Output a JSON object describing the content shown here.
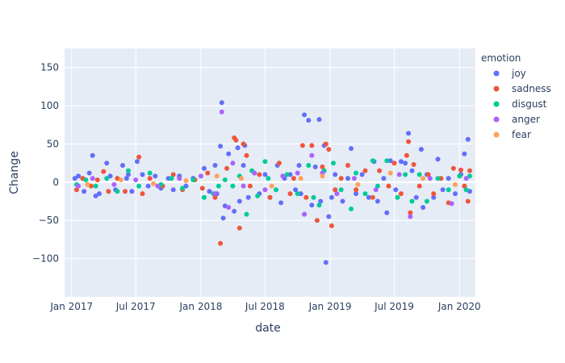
{
  "chart_data": {
    "type": "scatter",
    "title": "",
    "xlabel": "date",
    "ylabel": "Change",
    "xlim": [
      "2016-12-12",
      "2020-02-15"
    ],
    "ylim": [
      -150,
      175
    ],
    "x_ticks": [
      {
        "date": "2017-01-01",
        "label": "Jan 2017"
      },
      {
        "date": "2017-07-01",
        "label": "Jul 2017"
      },
      {
        "date": "2018-01-01",
        "label": "Jan 2018"
      },
      {
        "date": "2018-07-01",
        "label": "Jul 2018"
      },
      {
        "date": "2019-01-01",
        "label": "Jan 2019"
      },
      {
        "date": "2019-07-01",
        "label": "Jul 2019"
      },
      {
        "date": "2020-01-01",
        "label": "Jan 2020"
      }
    ],
    "y_ticks": [
      {
        "value": -100,
        "label": "−100"
      },
      {
        "value": -50,
        "label": "−50"
      },
      {
        "value": 0,
        "label": "0"
      },
      {
        "value": 50,
        "label": "50"
      },
      {
        "value": 100,
        "label": "100"
      },
      {
        "value": 150,
        "label": "150"
      }
    ],
    "grid": true,
    "background": "#E5ECF6",
    "legend": {
      "title": "emotion",
      "position": "right"
    },
    "series": [
      {
        "name": "joy",
        "color": "#636EFA",
        "points": [
          [
            "2017-01-10",
            5
          ],
          [
            "2017-01-20",
            8
          ],
          [
            "2017-02-05",
            -12
          ],
          [
            "2017-02-20",
            12
          ],
          [
            "2017-03-01",
            35
          ],
          [
            "2017-03-10",
            -18
          ],
          [
            "2017-03-20",
            -15
          ],
          [
            "2017-04-10",
            25
          ],
          [
            "2017-04-20",
            8
          ],
          [
            "2017-05-05",
            -10
          ],
          [
            "2017-05-25",
            22
          ],
          [
            "2017-06-05",
            5
          ],
          [
            "2017-06-10",
            10
          ],
          [
            "2017-06-20",
            -12
          ],
          [
            "2017-07-05",
            27
          ],
          [
            "2017-07-20",
            10
          ],
          [
            "2017-08-05",
            -5
          ],
          [
            "2017-08-25",
            8
          ],
          [
            "2017-09-10",
            -8
          ],
          [
            "2017-10-01",
            5
          ],
          [
            "2017-10-15",
            -10
          ],
          [
            "2017-11-01",
            8
          ],
          [
            "2017-11-20",
            -5
          ],
          [
            "2017-12-10",
            5
          ],
          [
            "2018-01-10",
            18
          ],
          [
            "2018-01-25",
            -12
          ],
          [
            "2018-02-10",
            22
          ],
          [
            "2018-02-15",
            -15
          ],
          [
            "2018-02-25",
            47
          ],
          [
            "2018-03-01",
            104
          ],
          [
            "2018-03-05",
            -47
          ],
          [
            "2018-03-10",
            -31
          ],
          [
            "2018-03-20",
            37
          ],
          [
            "2018-04-05",
            -38
          ],
          [
            "2018-04-15",
            45
          ],
          [
            "2018-04-20",
            -25
          ],
          [
            "2018-05-01",
            22
          ],
          [
            "2018-05-05",
            48
          ],
          [
            "2018-05-15",
            -20
          ],
          [
            "2018-06-01",
            12
          ],
          [
            "2018-06-15",
            -15
          ],
          [
            "2018-07-01",
            10
          ],
          [
            "2018-07-15",
            -20
          ],
          [
            "2018-08-05",
            22
          ],
          [
            "2018-08-15",
            -27
          ],
          [
            "2018-08-25",
            5
          ],
          [
            "2018-09-10",
            10
          ],
          [
            "2018-09-25",
            -10
          ],
          [
            "2018-10-05",
            22
          ],
          [
            "2018-10-10",
            -15
          ],
          [
            "2018-10-20",
            88
          ],
          [
            "2018-11-01",
            81
          ],
          [
            "2018-11-10",
            -30
          ],
          [
            "2018-11-20",
            20
          ],
          [
            "2018-12-01",
            82
          ],
          [
            "2018-12-05",
            -25
          ],
          [
            "2018-12-15",
            48
          ],
          [
            "2018-12-20",
            -105
          ],
          [
            "2018-12-28",
            -45
          ],
          [
            "2019-01-05",
            -20
          ],
          [
            "2019-01-15",
            10
          ],
          [
            "2019-02-05",
            -25
          ],
          [
            "2019-02-20",
            5
          ],
          [
            "2019-03-01",
            44
          ],
          [
            "2019-03-15",
            -15
          ],
          [
            "2019-04-01",
            10
          ],
          [
            "2019-04-20",
            -20
          ],
          [
            "2019-05-05",
            27
          ],
          [
            "2019-05-15",
            -25
          ],
          [
            "2019-06-01",
            5
          ],
          [
            "2019-06-10",
            -40
          ],
          [
            "2019-06-20",
            28
          ],
          [
            "2019-07-05",
            -10
          ],
          [
            "2019-07-20",
            27
          ],
          [
            "2019-08-01",
            25
          ],
          [
            "2019-08-10",
            64
          ],
          [
            "2019-08-20",
            15
          ],
          [
            "2019-09-01",
            -20
          ],
          [
            "2019-09-15",
            43
          ],
          [
            "2019-09-20",
            -33
          ],
          [
            "2019-10-01",
            10
          ],
          [
            "2019-10-20",
            -20
          ],
          [
            "2019-11-01",
            30
          ],
          [
            "2019-11-15",
            -10
          ],
          [
            "2019-12-01",
            5
          ],
          [
            "2019-12-20",
            -15
          ],
          [
            "2020-01-05",
            10
          ],
          [
            "2020-01-15",
            37
          ],
          [
            "2020-01-25",
            56
          ],
          [
            "2020-01-30",
            -12
          ]
        ]
      },
      {
        "name": "sadness",
        "color": "#EF553B",
        "points": [
          [
            "2017-01-15",
            -10
          ],
          [
            "2017-02-01",
            5
          ],
          [
            "2017-02-25",
            -5
          ],
          [
            "2017-03-15",
            3
          ],
          [
            "2017-04-01",
            14
          ],
          [
            "2017-04-15",
            -12
          ],
          [
            "2017-05-10",
            5
          ],
          [
            "2017-06-01",
            -12
          ],
          [
            "2017-07-10",
            33
          ],
          [
            "2017-07-20",
            -15
          ],
          [
            "2017-08-10",
            5
          ],
          [
            "2017-09-15",
            -5
          ],
          [
            "2017-10-15",
            10
          ],
          [
            "2017-11-10",
            -10
          ],
          [
            "2017-12-15",
            3
          ],
          [
            "2018-01-05",
            -8
          ],
          [
            "2018-01-20",
            12
          ],
          [
            "2018-02-10",
            -20
          ],
          [
            "2018-02-25",
            -80
          ],
          [
            "2018-03-15",
            18
          ],
          [
            "2018-04-05",
            58
          ],
          [
            "2018-04-10",
            55
          ],
          [
            "2018-04-20",
            -60
          ],
          [
            "2018-05-01",
            50
          ],
          [
            "2018-05-10",
            35
          ],
          [
            "2018-05-20",
            -5
          ],
          [
            "2018-06-15",
            10
          ],
          [
            "2018-07-15",
            -20
          ],
          [
            "2018-08-10",
            25
          ],
          [
            "2018-09-10",
            -15
          ],
          [
            "2018-09-20",
            5
          ],
          [
            "2018-10-15",
            48
          ],
          [
            "2018-10-25",
            -20
          ],
          [
            "2018-11-10",
            48
          ],
          [
            "2018-11-25",
            -50
          ],
          [
            "2018-12-10",
            20
          ],
          [
            "2018-12-20",
            50
          ],
          [
            "2018-12-28",
            43
          ],
          [
            "2019-01-05",
            -57
          ],
          [
            "2019-01-15",
            -10
          ],
          [
            "2019-02-01",
            5
          ],
          [
            "2019-02-20",
            22
          ],
          [
            "2019-03-15",
            -10
          ],
          [
            "2019-04-10",
            15
          ],
          [
            "2019-05-01",
            -20
          ],
          [
            "2019-05-20",
            15
          ],
          [
            "2019-06-15",
            -5
          ],
          [
            "2019-07-01",
            25
          ],
          [
            "2019-07-20",
            -15
          ],
          [
            "2019-08-05",
            35
          ],
          [
            "2019-08-10",
            53
          ],
          [
            "2019-08-15",
            -40
          ],
          [
            "2019-08-25",
            23
          ],
          [
            "2019-09-10",
            -5
          ],
          [
            "2019-10-05",
            10
          ],
          [
            "2019-10-20",
            -15
          ],
          [
            "2019-11-10",
            5
          ],
          [
            "2019-12-01",
            -27
          ],
          [
            "2019-12-15",
            18
          ],
          [
            "2020-01-05",
            16
          ],
          [
            "2020-01-15",
            -5
          ],
          [
            "2020-01-25",
            -25
          ],
          [
            "2020-01-30",
            15
          ]
        ]
      },
      {
        "name": "disgust",
        "color": "#00CC96",
        "points": [
          [
            "2017-01-15",
            -3
          ],
          [
            "2017-02-10",
            3
          ],
          [
            "2017-03-10",
            -5
          ],
          [
            "2017-04-10",
            5
          ],
          [
            "2017-05-10",
            -12
          ],
          [
            "2017-06-10",
            15
          ],
          [
            "2017-07-10",
            -5
          ],
          [
            "2017-08-10",
            12
          ],
          [
            "2017-09-10",
            -3
          ],
          [
            "2017-10-10",
            5
          ],
          [
            "2017-11-10",
            -8
          ],
          [
            "2017-12-10",
            3
          ],
          [
            "2018-01-10",
            -20
          ],
          [
            "2018-02-05",
            -15
          ],
          [
            "2018-02-20",
            -5
          ],
          [
            "2018-03-10",
            3
          ],
          [
            "2018-04-01",
            -5
          ],
          [
            "2018-04-20",
            8
          ],
          [
            "2018-05-10",
            -42
          ],
          [
            "2018-05-25",
            15
          ],
          [
            "2018-06-10",
            -18
          ],
          [
            "2018-07-01",
            27
          ],
          [
            "2018-07-10",
            5
          ],
          [
            "2018-08-01",
            -10
          ],
          [
            "2018-09-01",
            10
          ],
          [
            "2018-10-01",
            -15
          ],
          [
            "2018-10-20",
            -42
          ],
          [
            "2018-11-01",
            22
          ],
          [
            "2018-11-15",
            -20
          ],
          [
            "2018-12-01",
            -30
          ],
          [
            "2018-12-15",
            15
          ],
          [
            "2019-01-10",
            25
          ],
          [
            "2019-02-01",
            -10
          ],
          [
            "2019-03-01",
            -35
          ],
          [
            "2019-03-15",
            12
          ],
          [
            "2019-04-10",
            -15
          ],
          [
            "2019-05-01",
            28
          ],
          [
            "2019-05-15",
            -5
          ],
          [
            "2019-06-10",
            28
          ],
          [
            "2019-07-10",
            -20
          ],
          [
            "2019-08-01",
            10
          ],
          [
            "2019-08-20",
            -25
          ],
          [
            "2019-09-10",
            10
          ],
          [
            "2019-10-01",
            -25
          ],
          [
            "2019-11-01",
            5
          ],
          [
            "2019-12-01",
            -10
          ],
          [
            "2020-01-01",
            8
          ],
          [
            "2020-01-20",
            -10
          ],
          [
            "2020-01-30",
            8
          ]
        ]
      },
      {
        "name": "anger",
        "color": "#AB63FA",
        "points": [
          [
            "2017-01-20",
            -5
          ],
          [
            "2017-03-01",
            5
          ],
          [
            "2017-05-01",
            -3
          ],
          [
            "2017-07-01",
            3
          ],
          [
            "2017-09-01",
            -5
          ],
          [
            "2017-11-01",
            5
          ],
          [
            "2018-01-01",
            8
          ],
          [
            "2018-02-10",
            -15
          ],
          [
            "2018-03-01",
            92
          ],
          [
            "2018-03-20",
            -33
          ],
          [
            "2018-04-01",
            25
          ],
          [
            "2018-05-01",
            -5
          ],
          [
            "2018-06-01",
            12
          ],
          [
            "2018-07-01",
            -10
          ],
          [
            "2018-08-20",
            8
          ],
          [
            "2018-10-01",
            12
          ],
          [
            "2018-10-20",
            -42
          ],
          [
            "2018-11-10",
            35
          ],
          [
            "2018-12-10",
            12
          ],
          [
            "2019-01-20",
            -15
          ],
          [
            "2019-03-10",
            5
          ],
          [
            "2019-05-10",
            -10
          ],
          [
            "2019-07-15",
            10
          ],
          [
            "2019-08-15",
            -45
          ],
          [
            "2019-10-10",
            5
          ],
          [
            "2019-12-10",
            -28
          ],
          [
            "2020-01-20",
            5
          ]
        ]
      },
      {
        "name": "fear",
        "color": "#FFA15A",
        "points": [
          [
            "2017-02-15",
            -3
          ],
          [
            "2017-05-20",
            3
          ],
          [
            "2017-08-20",
            -2
          ],
          [
            "2017-11-20",
            2
          ],
          [
            "2018-02-15",
            8
          ],
          [
            "2018-04-25",
            5
          ],
          [
            "2018-07-20",
            -5
          ],
          [
            "2018-10-10",
            5
          ],
          [
            "2018-12-10",
            8
          ],
          [
            "2019-03-20",
            -3
          ],
          [
            "2019-06-20",
            12
          ],
          [
            "2019-09-20",
            5
          ],
          [
            "2019-12-20",
            -3
          ]
        ]
      }
    ]
  }
}
